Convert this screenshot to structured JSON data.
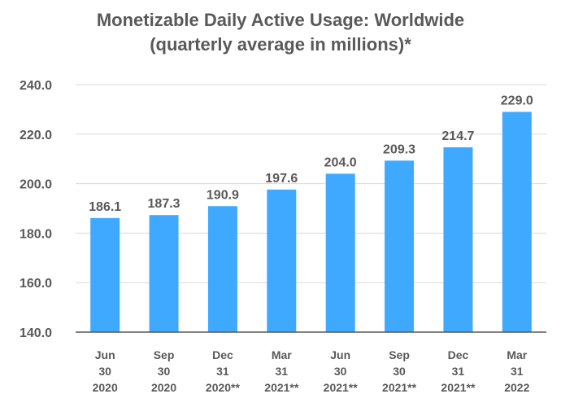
{
  "chart_data": {
    "type": "bar",
    "title_line1": "Monetizable Daily Active Usage: Worldwide",
    "title_line2": "(quarterly average in millions)*",
    "categories": [
      [
        "Jun",
        "30",
        "2020"
      ],
      [
        "Sep",
        "30",
        "2020"
      ],
      [
        "Dec",
        "31",
        "2020**"
      ],
      [
        "Mar",
        "31",
        "2021**"
      ],
      [
        "Jun",
        "30",
        "2021**"
      ],
      [
        "Sep",
        "30",
        "2021**"
      ],
      [
        "Dec",
        "31",
        "2021**"
      ],
      [
        "Mar",
        "31",
        "2022"
      ]
    ],
    "values": [
      186.1,
      187.3,
      190.9,
      197.6,
      204.0,
      209.3,
      214.7,
      229.0
    ],
    "value_labels": [
      "186.1",
      "187.3",
      "190.9",
      "197.6",
      "204.0",
      "209.3",
      "214.7",
      "229.0"
    ],
    "ylim": [
      140,
      240
    ],
    "yticks": [
      140,
      160,
      180,
      200,
      220,
      240
    ],
    "ytick_labels": [
      "140.0",
      "160.0",
      "180.0",
      "200.0",
      "220.0",
      "240.0"
    ],
    "xlabel": "",
    "ylabel": "",
    "grid": true,
    "bar_color": "#3FA9FF",
    "grid_color": "#D9D9D9",
    "text_color": "#595959"
  }
}
